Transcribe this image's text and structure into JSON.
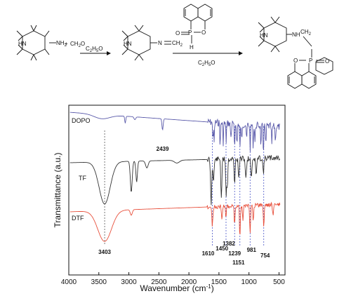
{
  "scheme": {
    "plus": "+",
    "ch2o": "CH",
    "ch2o_sub": "2",
    "ch2o_tail": "O",
    "nh2": "NH",
    "nh2_sub": "2",
    "n_eq": "N",
    "ch2_eq": "CH",
    "ch2_eq_sub": "2",
    "solvent1": "C",
    "solvent1_sub": "2",
    "solvent1_mid": "H",
    "solvent1_sub2": "5",
    "solvent1_tail": "O",
    "solvent2": "C",
    "solvent2_sub": "2",
    "solvent2_mid": "H",
    "solvent2_sub2": "5",
    "solvent2_tail": "O",
    "hn_a": "HN",
    "hn_b": "HN",
    "hn_c": "HN",
    "p": "P",
    "o_ring": "O",
    "o_dbl": "O",
    "h": "H",
    "p2": "P",
    "o2_ring": "O",
    "o2_dbl": "O",
    "nh": "NH",
    "ch2_link": "CH",
    "ch2_link_sub": "2"
  },
  "chart_data": {
    "type": "line",
    "xlabel": "Wavenumber (cm",
    "xlabel_sup": "-1",
    "xlabel_tail": ")",
    "ylabel": "Transmittance (a.u.)",
    "xlim": [
      4000,
      400
    ],
    "x_reversed": true,
    "xticks": [
      4000,
      3500,
      3000,
      2500,
      2000,
      1500,
      1000,
      500
    ],
    "series": [
      {
        "name": "DOPO",
        "color": "#5a5aaa"
      },
      {
        "name": "TF",
        "color": "#333333"
      },
      {
        "name": "DTF",
        "color": "#e8503c"
      }
    ],
    "peaks": [
      {
        "label": "2439",
        "x": 2439
      },
      {
        "label": "3403",
        "x": 3403
      },
      {
        "label": "1610",
        "x": 1610
      },
      {
        "label": "1450",
        "x": 1450
      },
      {
        "label": "1382",
        "x": 1382
      },
      {
        "label": "1239",
        "x": 1239
      },
      {
        "label": "1151",
        "x": 1151
      },
      {
        "label": "981",
        "x": 981
      },
      {
        "label": "754",
        "x": 754
      }
    ],
    "reference_lines_x": [
      3403,
      1610,
      1382,
      1239,
      1151,
      981,
      754
    ]
  }
}
